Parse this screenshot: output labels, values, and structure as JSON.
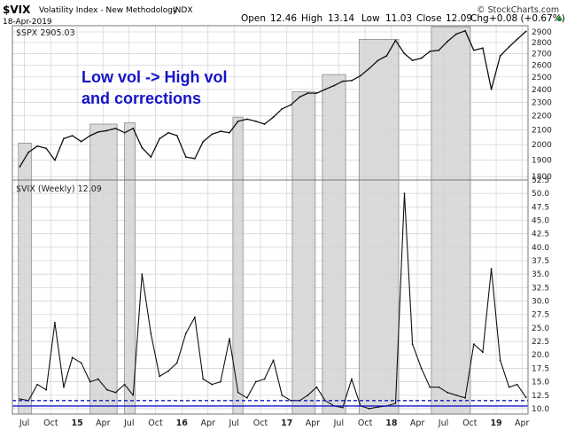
{
  "header": {
    "symbol": "$VIX",
    "name": "Volatility Index - New Methodology",
    "exchange": "INDX",
    "date": "18-Apr-2019",
    "open_label": "Open",
    "open": "12.46",
    "high_label": "High",
    "high": "13.14",
    "low_label": "Low",
    "low": "11.03",
    "close_label": "Close",
    "close": "12.09",
    "chg_label": "Chg",
    "chg": "+0.08 (+0.67%)",
    "brand": "© StockCharts.com"
  },
  "colors": {
    "highlight": "#d3d3d3",
    "highlight_edge": "#8c8c8c",
    "price": "#111111",
    "grid": "#d6d6d6",
    "annotation": "#1414c8",
    "reference_line": "#1414c8"
  },
  "chart_data": [
    {
      "type": "line",
      "panel": "top",
      "label": "$SPX 2905.03",
      "yscale": "log",
      "ylim": [
        1780,
        2960
      ],
      "yticks": [
        1800,
        1900,
        2000,
        2100,
        2200,
        2300,
        2400,
        2500,
        2600,
        2700,
        2800,
        2900
      ],
      "x": [
        "2014-06",
        "2014-07",
        "2014-08",
        "2014-09",
        "2014-10",
        "2014-11",
        "2014-12",
        "2015-01",
        "2015-02",
        "2015-03",
        "2015-04",
        "2015-05",
        "2015-06",
        "2015-07",
        "2015-08",
        "2015-09",
        "2015-10",
        "2015-11",
        "2015-12",
        "2016-01",
        "2016-02",
        "2016-03",
        "2016-04",
        "2016-05",
        "2016-06",
        "2016-07",
        "2016-08",
        "2016-09",
        "2016-10",
        "2016-11",
        "2016-12",
        "2017-01",
        "2017-02",
        "2017-03",
        "2017-04",
        "2017-05",
        "2017-06",
        "2017-07",
        "2017-08",
        "2017-09",
        "2017-10",
        "2017-11",
        "2017-12",
        "2018-01",
        "2018-02",
        "2018-03",
        "2018-04",
        "2018-05",
        "2018-06",
        "2018-07",
        "2018-08",
        "2018-09",
        "2018-10",
        "2018-11",
        "2018-12",
        "2019-01",
        "2019-02",
        "2019-03",
        "2019-04"
      ],
      "series": [
        {
          "values": [
            1860,
            1950,
            1990,
            1975,
            1900,
            2040,
            2060,
            2020,
            2060,
            2085,
            2095,
            2110,
            2080,
            2110,
            1980,
            1920,
            2040,
            2080,
            2060,
            1920,
            1910,
            2020,
            2070,
            2090,
            2080,
            2160,
            2175,
            2160,
            2140,
            2190,
            2250,
            2280,
            2340,
            2370,
            2370,
            2400,
            2430,
            2465,
            2470,
            2510,
            2570,
            2640,
            2680,
            2820,
            2700,
            2640,
            2660,
            2720,
            2730,
            2810,
            2880,
            2910,
            2730,
            2750,
            2400,
            2680,
            2760,
            2830,
            2905
          ]
        }
      ]
    },
    {
      "type": "line",
      "panel": "bottom",
      "label": "$VIX (Weekly) 12.09",
      "ylim": [
        9,
        52.5
      ],
      "yticks": [
        10.0,
        12.5,
        15.0,
        17.5,
        20.0,
        22.5,
        25.0,
        27.5,
        30.0,
        32.5,
        35.0,
        37.5,
        40.0,
        42.5,
        45.0,
        47.5,
        50.0,
        52.5
      ],
      "reference_lines": [
        11.5,
        10.5
      ],
      "x": [
        "2014-06",
        "2014-07",
        "2014-08",
        "2014-09",
        "2014-10",
        "2014-11",
        "2014-12",
        "2015-01",
        "2015-02",
        "2015-03",
        "2015-04",
        "2015-05",
        "2015-06",
        "2015-07",
        "2015-08",
        "2015-09",
        "2015-10",
        "2015-11",
        "2015-12",
        "2016-01",
        "2016-02",
        "2016-03",
        "2016-04",
        "2016-05",
        "2016-06",
        "2016-07",
        "2016-08",
        "2016-09",
        "2016-10",
        "2016-11",
        "2016-12",
        "2017-01",
        "2017-02",
        "2017-03",
        "2017-04",
        "2017-05",
        "2017-06",
        "2017-07",
        "2017-08",
        "2017-09",
        "2017-10",
        "2017-11",
        "2017-12",
        "2018-01",
        "2018-02",
        "2018-03",
        "2018-04",
        "2018-05",
        "2018-06",
        "2018-07",
        "2018-08",
        "2018-09",
        "2018-10",
        "2018-11",
        "2018-12",
        "2019-01",
        "2019-02",
        "2019-03",
        "2019-04"
      ],
      "series": [
        {
          "values": [
            11.8,
            11.5,
            14.5,
            13.5,
            26.0,
            14.0,
            19.5,
            18.5,
            15.0,
            15.5,
            13.5,
            13.0,
            14.5,
            12.5,
            35.0,
            24.0,
            16.0,
            17.0,
            18.5,
            24.0,
            27.0,
            15.5,
            14.5,
            15.0,
            23.0,
            13.0,
            12.0,
            15.0,
            15.5,
            19.0,
            12.5,
            11.5,
            11.5,
            12.5,
            14.0,
            11.5,
            10.5,
            10.2,
            15.5,
            10.5,
            10.0,
            10.3,
            10.5,
            11.0,
            50.0,
            22.0,
            17.5,
            14.0,
            14.0,
            13.0,
            12.5,
            12.0,
            22.0,
            20.5,
            36.0,
            19.0,
            14.0,
            14.5,
            12.1
          ]
        }
      ]
    }
  ],
  "x_axis": [
    "Jul",
    "Oct",
    "15",
    "Apr",
    "Jul",
    "Oct",
    "16",
    "Apr",
    "Jul",
    "Oct",
    "17",
    "Apr",
    "Jul",
    "Oct",
    "18",
    "Apr",
    "Jul",
    "Oct",
    "19",
    "Apr"
  ],
  "x_axis_dates": [
    "2014-07-01",
    "2014-10-01",
    "2015-01-01",
    "2015-04-01",
    "2015-07-01",
    "2015-10-01",
    "2016-01-01",
    "2016-04-01",
    "2016-07-01",
    "2016-10-01",
    "2017-01-01",
    "2017-04-01",
    "2017-07-01",
    "2017-10-01",
    "2018-01-01",
    "2018-04-01",
    "2018-07-01",
    "2018-10-01",
    "2019-01-01",
    "2019-04-01"
  ],
  "highlights": [
    {
      "start": "2014-06-10",
      "end": "2014-07-25",
      "spx_top": 2010
    },
    {
      "start": "2015-02-15",
      "end": "2015-05-20",
      "spx_top": 2140
    },
    {
      "start": "2015-06-15",
      "end": "2015-07-22",
      "spx_top": 2150
    },
    {
      "start": "2016-06-27",
      "end": "2016-08-01",
      "spx_top": 2190
    },
    {
      "start": "2017-01-20",
      "end": "2017-04-10",
      "spx_top": 2380
    },
    {
      "start": "2017-05-05",
      "end": "2017-07-25",
      "spx_top": 2520
    },
    {
      "start": "2017-09-10",
      "end": "2018-01-26",
      "spx_top": 2830
    },
    {
      "start": "2018-05-20",
      "end": "2018-10-03",
      "spx_top": 2950
    }
  ],
  "annotation": {
    "line1": "Low vol -> High vol",
    "line2": "and corrections"
  }
}
